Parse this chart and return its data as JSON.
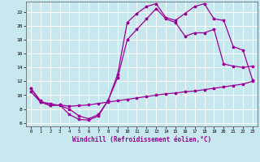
{
  "xlabel": "Windchill (Refroidissement éolien,°C)",
  "background_color": "#c8e8f0",
  "grid_color": "#ffffff",
  "line_color": "#990099",
  "xlim": [
    -0.5,
    23.5
  ],
  "ylim": [
    5.5,
    23.5
  ],
  "xticks": [
    0,
    1,
    2,
    3,
    4,
    5,
    6,
    7,
    8,
    9,
    10,
    11,
    12,
    13,
    14,
    15,
    16,
    17,
    18,
    19,
    20,
    21,
    22,
    23
  ],
  "yticks": [
    6,
    8,
    10,
    12,
    14,
    16,
    18,
    20,
    22
  ],
  "line1_x": [
    0,
    1,
    2,
    3,
    4,
    5,
    6,
    7,
    8,
    9,
    10,
    11,
    12,
    13,
    14,
    15,
    16,
    17,
    18,
    19,
    20,
    21,
    22,
    23
  ],
  "line1_y": [
    10.5,
    9.0,
    8.5,
    8.6,
    8.4,
    8.5,
    8.6,
    8.8,
    9.0,
    9.2,
    9.4,
    9.6,
    9.8,
    10.0,
    10.2,
    10.3,
    10.5,
    10.6,
    10.8,
    11.0,
    11.2,
    11.4,
    11.6,
    12.0
  ],
  "line2_x": [
    0,
    1,
    2,
    3,
    4,
    5,
    6,
    7,
    8,
    9,
    10,
    11,
    12,
    13,
    14,
    15,
    16,
    17,
    18,
    19,
    20,
    21,
    22,
    23
  ],
  "line2_y": [
    11.0,
    9.2,
    8.5,
    8.6,
    7.2,
    6.5,
    6.4,
    7.0,
    9.2,
    12.5,
    18.0,
    19.5,
    21.0,
    22.5,
    21.0,
    20.5,
    18.5,
    19.0,
    19.0,
    19.5,
    14.5,
    14.2,
    14.0,
    14.2
  ],
  "line3_x": [
    0,
    1,
    2,
    3,
    4,
    5,
    6,
    7,
    8,
    9,
    10,
    11,
    12,
    13,
    14,
    15,
    16,
    17,
    18,
    19,
    20,
    21,
    22,
    23
  ],
  "line3_y": [
    11.0,
    9.0,
    8.8,
    8.5,
    8.0,
    7.0,
    6.6,
    7.2,
    9.2,
    13.0,
    20.5,
    21.8,
    22.8,
    23.2,
    21.2,
    20.8,
    21.8,
    22.8,
    23.2,
    21.0,
    20.8,
    17.0,
    16.5,
    12.2
  ]
}
